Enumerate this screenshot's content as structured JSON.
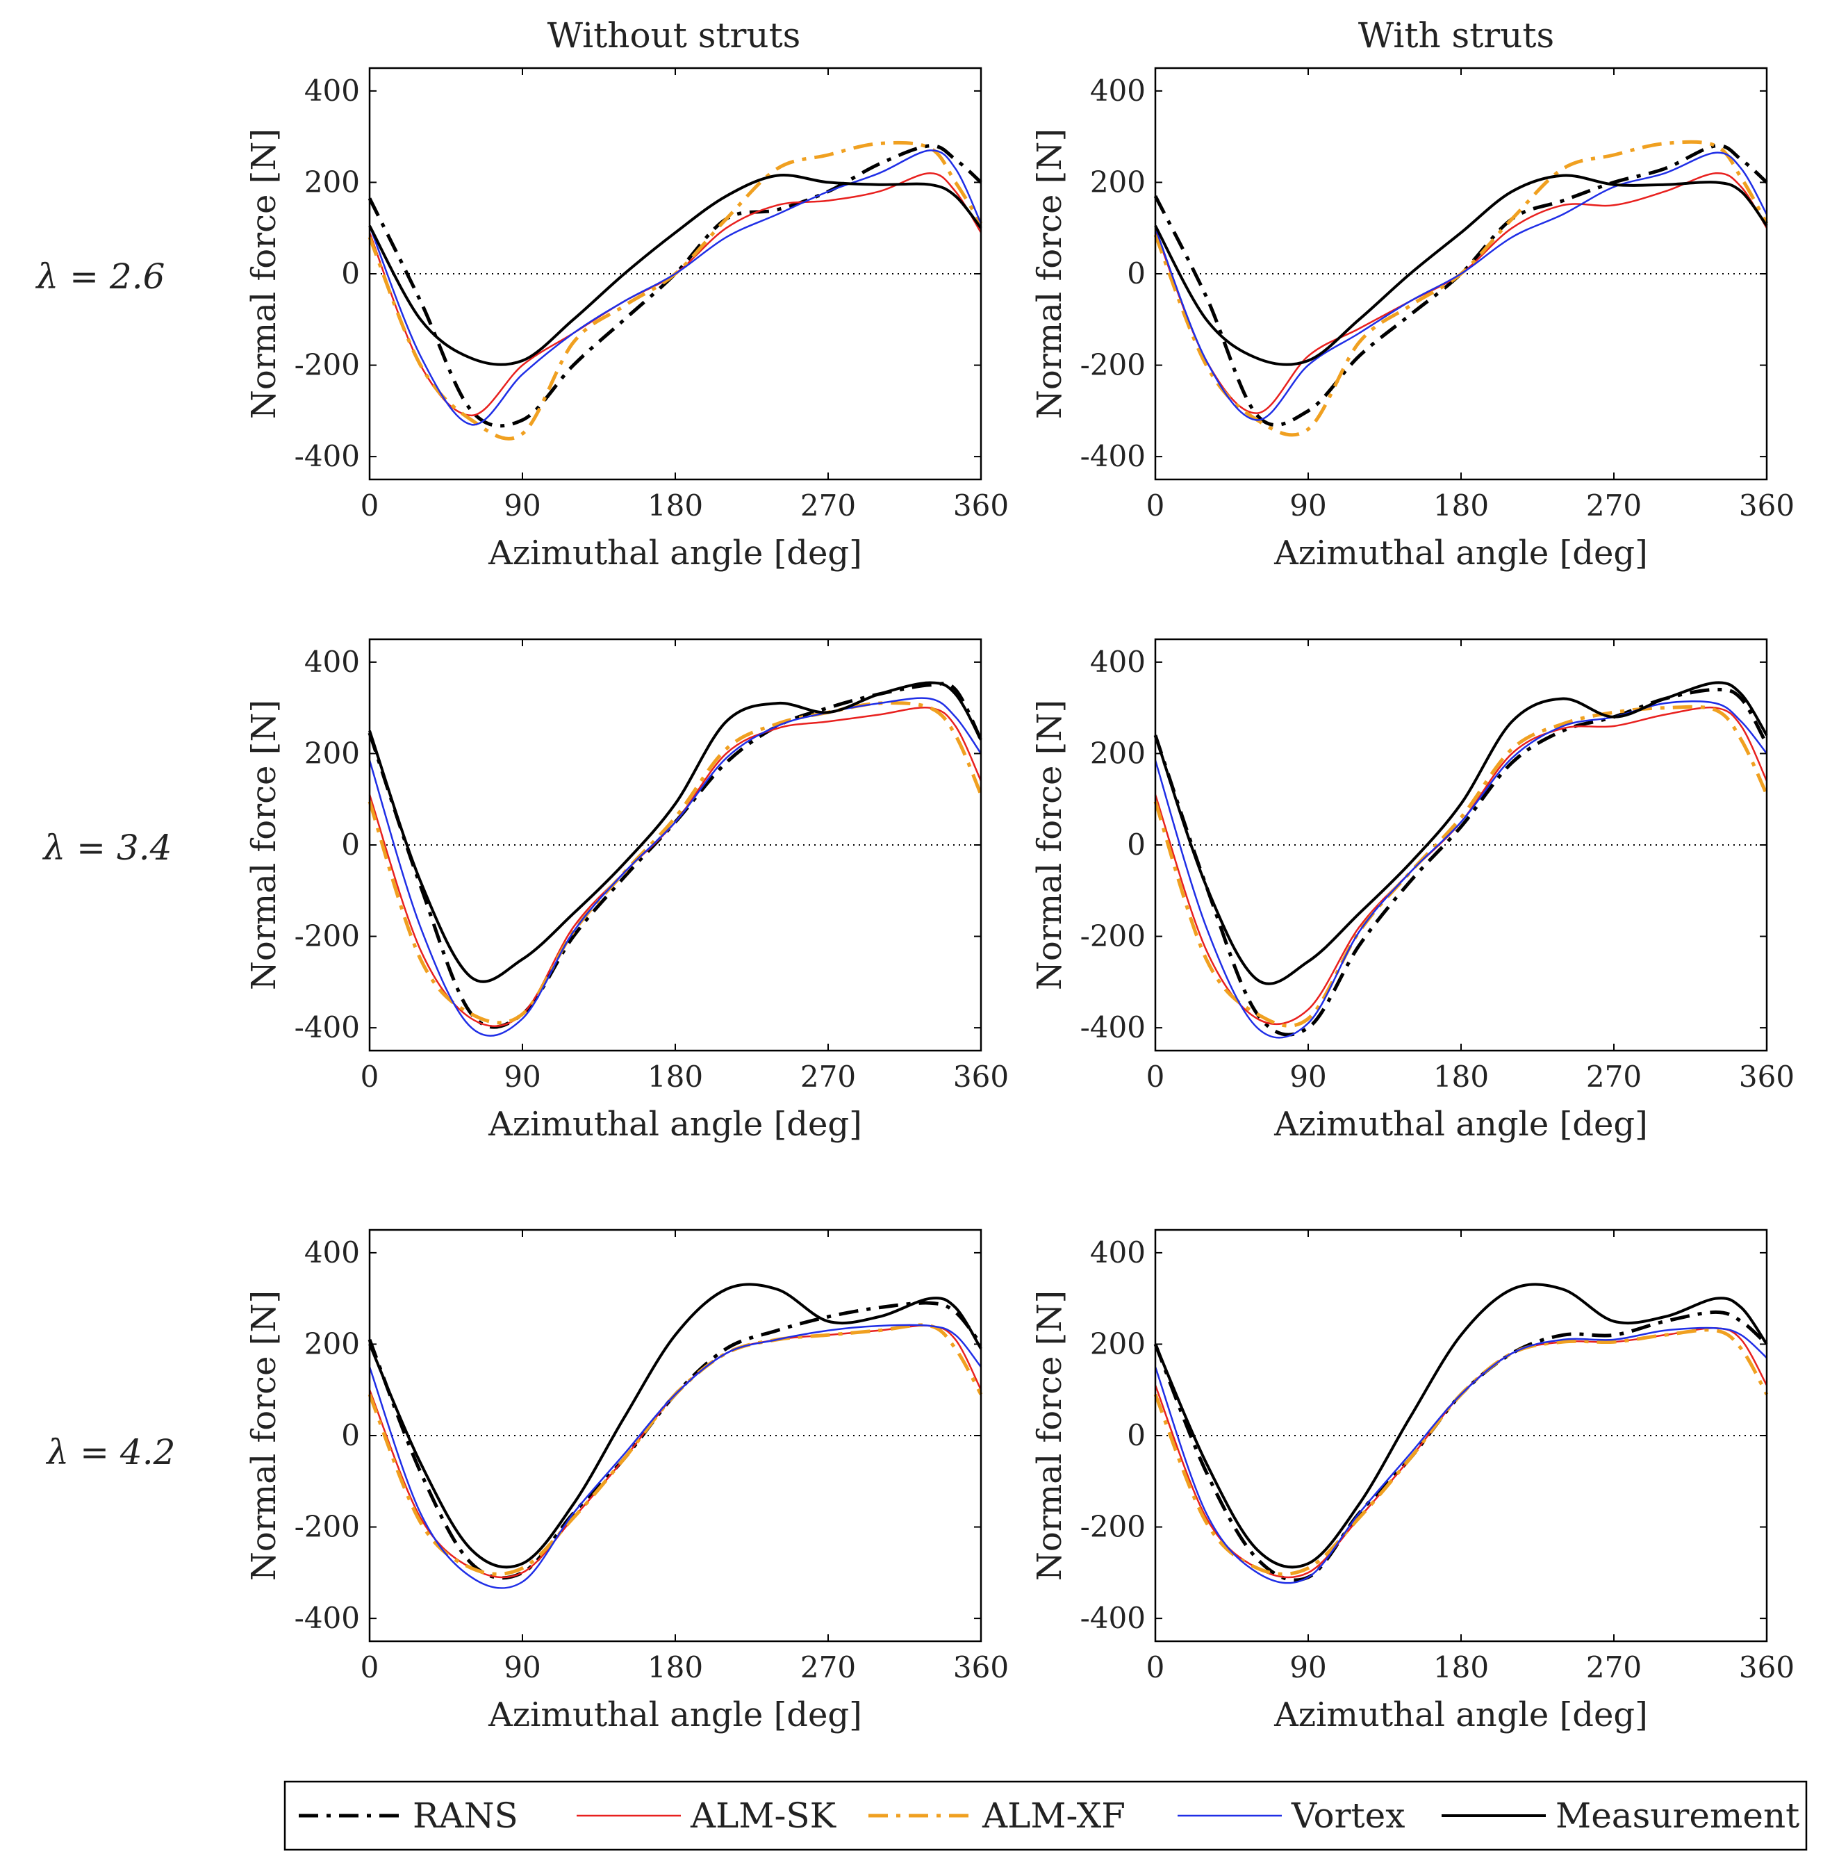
{
  "chart_data": {
    "type": "line",
    "column_titles": [
      "Without struts",
      "With struts"
    ],
    "row_labels": [
      "λ = 2.6",
      "λ = 3.4",
      "λ = 4.2"
    ],
    "xlabel": "Azimuthal angle [deg]",
    "ylabel": "Normal force [N]",
    "xlim": [
      0,
      360
    ],
    "ylim": [
      -450,
      450
    ],
    "xticks": [
      0,
      90,
      180,
      270,
      360
    ],
    "yticks": [
      400,
      200,
      0,
      -200,
      -400
    ],
    "x": [
      0,
      30,
      60,
      90,
      120,
      150,
      180,
      210,
      240,
      270,
      300,
      330,
      345,
      360
    ],
    "legend": [
      "RANS",
      "ALM-SK",
      "ALM-XF",
      "Vortex",
      "Measurement"
    ],
    "series_styles": {
      "RANS": {
        "color": "#000000",
        "dash": "28 12 6 12",
        "width": 5
      },
      "ALM-SK": {
        "color": "#e8201e",
        "dash": "",
        "width": 2.5
      },
      "ALM-XF": {
        "color": "#f0a020",
        "dash": "28 12 6 12",
        "width": 5
      },
      "Vortex": {
        "color": "#1f2ee6",
        "dash": "",
        "width": 2.5
      },
      "Measurement": {
        "color": "#000000",
        "dash": "",
        "width": 4
      }
    },
    "panels": [
      {
        "row": 0,
        "col": 0,
        "series": [
          {
            "name": "RANS",
            "values": [
              165,
              -60,
              -300,
              -320,
              -200,
              -100,
              0,
              120,
              140,
              180,
              240,
              280,
              250,
              200
            ]
          },
          {
            "name": "ALM-SK",
            "values": [
              90,
              -200,
              -310,
              -200,
              -130,
              -60,
              0,
              100,
              150,
              160,
              180,
              220,
              180,
              90
            ]
          },
          {
            "name": "ALM-XF",
            "values": [
              80,
              -200,
              -320,
              -350,
              -150,
              -70,
              0,
              120,
              230,
              260,
              285,
              275,
              200,
              110
            ]
          },
          {
            "name": "Vortex",
            "values": [
              105,
              -180,
              -330,
              -220,
              -130,
              -60,
              0,
              80,
              130,
              180,
              220,
              270,
              230,
              110
            ]
          },
          {
            "name": "Measurement",
            "values": [
              105,
              -100,
              -185,
              -190,
              -100,
              0,
              90,
              170,
              215,
              200,
              195,
              195,
              170,
              100
            ]
          }
        ]
      },
      {
        "row": 0,
        "col": 1,
        "series": [
          {
            "name": "RANS",
            "values": [
              170,
              -50,
              -310,
              -300,
              -180,
              -90,
              0,
              120,
              160,
              200,
              230,
              280,
              250,
              200
            ]
          },
          {
            "name": "ALM-SK",
            "values": [
              95,
              -190,
              -305,
              -180,
              -120,
              -60,
              0,
              100,
              150,
              150,
              180,
              220,
              190,
              100
            ]
          },
          {
            "name": "ALM-XF",
            "values": [
              85,
              -200,
              -320,
              -340,
              -150,
              -70,
              0,
              120,
              230,
              260,
              285,
              280,
              210,
              110
            ]
          },
          {
            "name": "Vortex",
            "values": [
              100,
              -190,
              -320,
              -200,
              -130,
              -60,
              0,
              80,
              130,
              190,
              220,
              265,
              230,
              130
            ]
          },
          {
            "name": "Measurement",
            "values": [
              105,
              -100,
              -185,
              -190,
              -100,
              0,
              90,
              180,
              215,
              195,
              195,
              200,
              180,
              105
            ]
          }
        ]
      },
      {
        "row": 1,
        "col": 0,
        "series": [
          {
            "name": "RANS",
            "values": [
              245,
              -90,
              -370,
              -370,
              -200,
              -70,
              50,
              180,
              260,
              300,
              330,
              350,
              340,
              230
            ]
          },
          {
            "name": "ALM-SK",
            "values": [
              110,
              -230,
              -380,
              -370,
              -180,
              -60,
              50,
              200,
              255,
              270,
              285,
              300,
              260,
              140
            ]
          },
          {
            "name": "ALM-XF",
            "values": [
              95,
              -250,
              -370,
              -370,
              -190,
              -60,
              60,
              210,
              265,
              290,
              310,
              300,
              240,
              110
            ]
          },
          {
            "name": "Vortex",
            "values": [
              185,
              -180,
              -400,
              -380,
              -190,
              -60,
              50,
              190,
              260,
              290,
              310,
              320,
              280,
              200
            ]
          },
          {
            "name": "Measurement",
            "values": [
              250,
              -80,
              -290,
              -250,
              -150,
              -40,
              90,
              270,
              310,
              290,
              330,
              355,
              330,
              230
            ]
          }
        ]
      },
      {
        "row": 1,
        "col": 1,
        "series": [
          {
            "name": "RANS",
            "values": [
              240,
              -90,
              -370,
              -400,
              -220,
              -80,
              40,
              180,
              250,
              280,
              320,
              340,
              320,
              220
            ]
          },
          {
            "name": "ALM-SK",
            "values": [
              110,
              -230,
              -380,
              -360,
              -180,
              -60,
              50,
              200,
              255,
              260,
              285,
              300,
              260,
              140
            ]
          },
          {
            "name": "ALM-XF",
            "values": [
              95,
              -250,
              -370,
              -380,
              -190,
              -60,
              60,
              210,
              265,
              290,
              300,
              295,
              230,
              110
            ]
          },
          {
            "name": "Vortex",
            "values": [
              185,
              -180,
              -400,
              -390,
              -190,
              -60,
              50,
              190,
              260,
              280,
              310,
              310,
              270,
              200
            ]
          },
          {
            "name": "Measurement",
            "values": [
              240,
              -90,
              -295,
              -255,
              -150,
              -40,
              90,
              270,
              320,
              280,
              320,
              355,
              330,
              240
            ]
          }
        ]
      },
      {
        "row": 2,
        "col": 0,
        "series": [
          {
            "name": "RANS",
            "values": [
              210,
              -80,
              -280,
              -300,
              -170,
              -50,
              90,
              190,
              230,
              260,
              280,
              290,
              270,
              200
            ]
          },
          {
            "name": "ALM-SK",
            "values": [
              100,
              -180,
              -290,
              -300,
              -180,
              -50,
              90,
              180,
              210,
              220,
              230,
              240,
              210,
              100
            ]
          },
          {
            "name": "ALM-XF",
            "values": [
              90,
              -190,
              -290,
              -290,
              -180,
              -50,
              90,
              180,
              210,
              220,
              230,
              240,
              190,
              90
            ]
          },
          {
            "name": "Vortex",
            "values": [
              150,
              -170,
              -310,
              -320,
              -170,
              -40,
              90,
              180,
              210,
              230,
              240,
              240,
              220,
              150
            ]
          },
          {
            "name": "Measurement",
            "values": [
              200,
              -60,
              -250,
              -280,
              -150,
              40,
              220,
              320,
              320,
              250,
              260,
              300,
              280,
              190
            ]
          }
        ]
      },
      {
        "row": 2,
        "col": 1,
        "series": [
          {
            "name": "RANS",
            "values": [
              200,
              -80,
              -270,
              -310,
              -170,
              -50,
              90,
              180,
              220,
              220,
              250,
              270,
              250,
              200
            ]
          },
          {
            "name": "ALM-SK",
            "values": [
              110,
              -180,
              -290,
              -300,
              -180,
              -50,
              90,
              180,
              205,
              205,
              220,
              235,
              210,
              110
            ]
          },
          {
            "name": "ALM-XF",
            "values": [
              90,
              -190,
              -290,
              -290,
              -180,
              -50,
              90,
              180,
              205,
              205,
              220,
              230,
              190,
              90
            ]
          },
          {
            "name": "Vortex",
            "values": [
              150,
              -170,
              -300,
              -310,
              -170,
              -40,
              90,
              180,
              210,
              210,
              230,
              235,
              220,
              170
            ]
          },
          {
            "name": "Measurement",
            "values": [
              200,
              -60,
              -250,
              -280,
              -150,
              40,
              220,
              320,
              320,
              250,
              260,
              300,
              280,
              200
            ]
          }
        ]
      }
    ]
  }
}
